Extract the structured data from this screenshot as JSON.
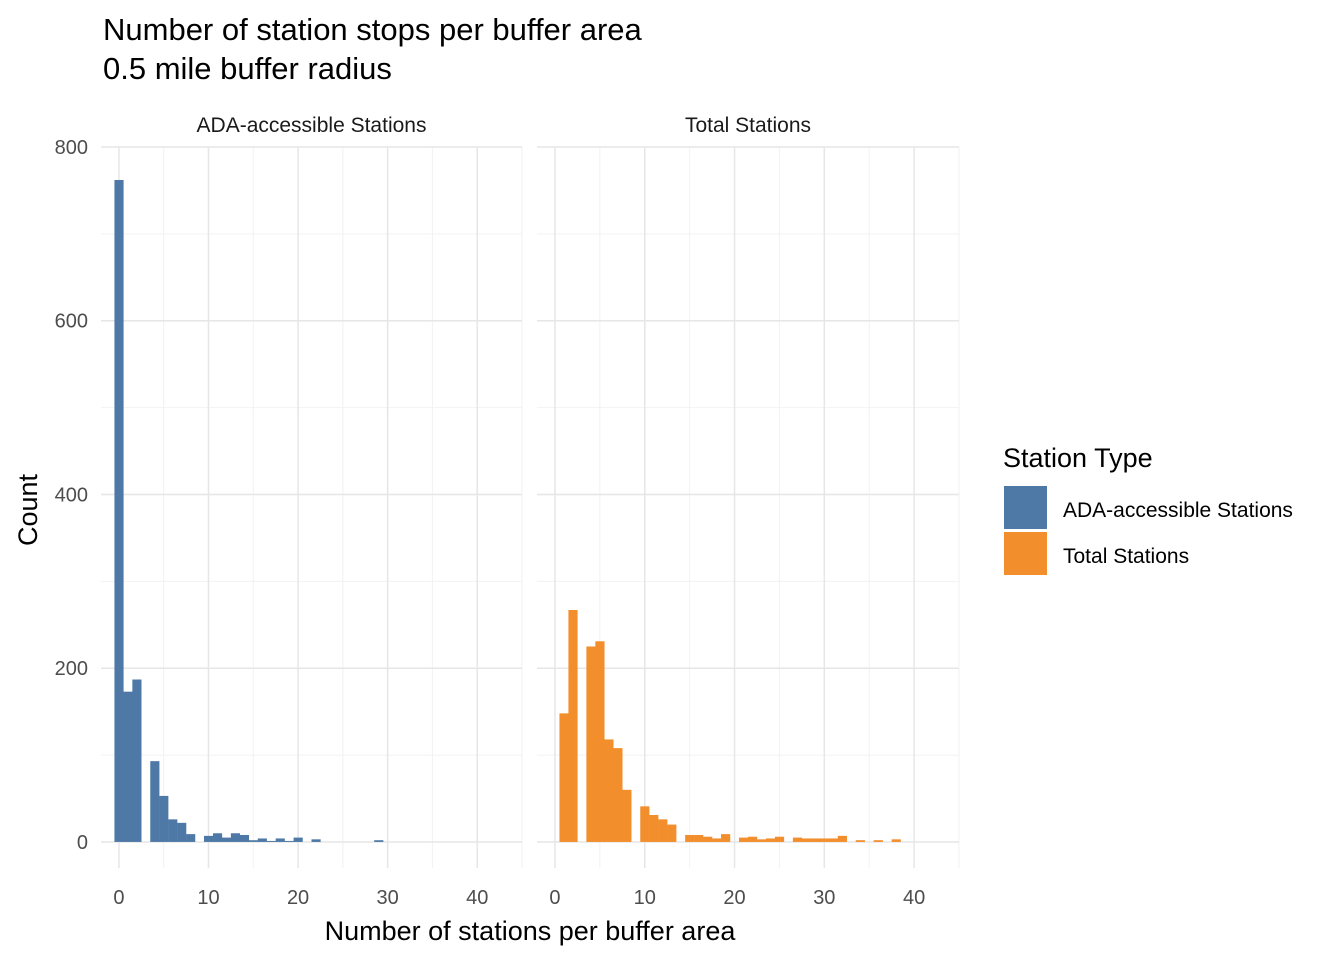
{
  "chart_data": {
    "type": "bar",
    "title": "Number of station stops per buffer area",
    "subtitle": "0.5 mile buffer radius",
    "xlabel": "Number of stations per buffer area",
    "ylabel": "Count",
    "xlim": [
      -2,
      45
    ],
    "ylim": [
      -30,
      800
    ],
    "x_ticks": [
      0,
      10,
      20,
      30,
      40
    ],
    "y_ticks": [
      0,
      200,
      400,
      600,
      800
    ],
    "grid": true,
    "bin_width": 1,
    "legend": {
      "title": "Station Type",
      "position": "right",
      "entries": [
        {
          "label": "ADA-accessible Stations",
          "color": "#4e79a7"
        },
        {
          "label": "Total Stations",
          "color": "#f28e2b"
        }
      ]
    },
    "panels": [
      {
        "strip": "ADA-accessible Stations",
        "color": "#4e79a7",
        "bins": [
          {
            "x": 0,
            "count": 762
          },
          {
            "x": 1,
            "count": 173
          },
          {
            "x": 2,
            "count": 187
          },
          {
            "x": 3,
            "count": 0
          },
          {
            "x": 4,
            "count": 93
          },
          {
            "x": 5,
            "count": 53
          },
          {
            "x": 6,
            "count": 26
          },
          {
            "x": 7,
            "count": 22
          },
          {
            "x": 8,
            "count": 9
          },
          {
            "x": 9,
            "count": 0
          },
          {
            "x": 10,
            "count": 7
          },
          {
            "x": 11,
            "count": 10
          },
          {
            "x": 12,
            "count": 5
          },
          {
            "x": 13,
            "count": 10
          },
          {
            "x": 14,
            "count": 8
          },
          {
            "x": 15,
            "count": 2
          },
          {
            "x": 16,
            "count": 4
          },
          {
            "x": 17,
            "count": 1
          },
          {
            "x": 18,
            "count": 4
          },
          {
            "x": 19,
            "count": 1
          },
          {
            "x": 20,
            "count": 5
          },
          {
            "x": 21,
            "count": 0
          },
          {
            "x": 22,
            "count": 3
          },
          {
            "x": 23,
            "count": 0
          },
          {
            "x": 24,
            "count": 0
          },
          {
            "x": 25,
            "count": 0
          },
          {
            "x": 26,
            "count": 0
          },
          {
            "x": 27,
            "count": 0
          },
          {
            "x": 28,
            "count": 0
          },
          {
            "x": 29,
            "count": 2
          }
        ]
      },
      {
        "strip": "Total Stations",
        "color": "#f28e2b",
        "bins": [
          {
            "x": 1,
            "count": 148
          },
          {
            "x": 2,
            "count": 267
          },
          {
            "x": 3,
            "count": 0
          },
          {
            "x": 4,
            "count": 225
          },
          {
            "x": 5,
            "count": 231
          },
          {
            "x": 6,
            "count": 118
          },
          {
            "x": 7,
            "count": 108
          },
          {
            "x": 8,
            "count": 60
          },
          {
            "x": 9,
            "count": 0
          },
          {
            "x": 10,
            "count": 41
          },
          {
            "x": 11,
            "count": 31
          },
          {
            "x": 12,
            "count": 26
          },
          {
            "x": 13,
            "count": 20
          },
          {
            "x": 14,
            "count": 0
          },
          {
            "x": 15,
            "count": 8
          },
          {
            "x": 16,
            "count": 8
          },
          {
            "x": 17,
            "count": 6
          },
          {
            "x": 18,
            "count": 4
          },
          {
            "x": 19,
            "count": 9
          },
          {
            "x": 20,
            "count": 0
          },
          {
            "x": 21,
            "count": 5
          },
          {
            "x": 22,
            "count": 6
          },
          {
            "x": 23,
            "count": 3
          },
          {
            "x": 24,
            "count": 4
          },
          {
            "x": 25,
            "count": 6
          },
          {
            "x": 26,
            "count": 0
          },
          {
            "x": 27,
            "count": 5
          },
          {
            "x": 28,
            "count": 4
          },
          {
            "x": 29,
            "count": 4
          },
          {
            "x": 30,
            "count": 4
          },
          {
            "x": 31,
            "count": 4
          },
          {
            "x": 32,
            "count": 7
          },
          {
            "x": 33,
            "count": 0
          },
          {
            "x": 34,
            "count": 2
          },
          {
            "x": 35,
            "count": 0
          },
          {
            "x": 36,
            "count": 2
          },
          {
            "x": 37,
            "count": 0
          },
          {
            "x": 38,
            "count": 3
          }
        ]
      }
    ]
  }
}
